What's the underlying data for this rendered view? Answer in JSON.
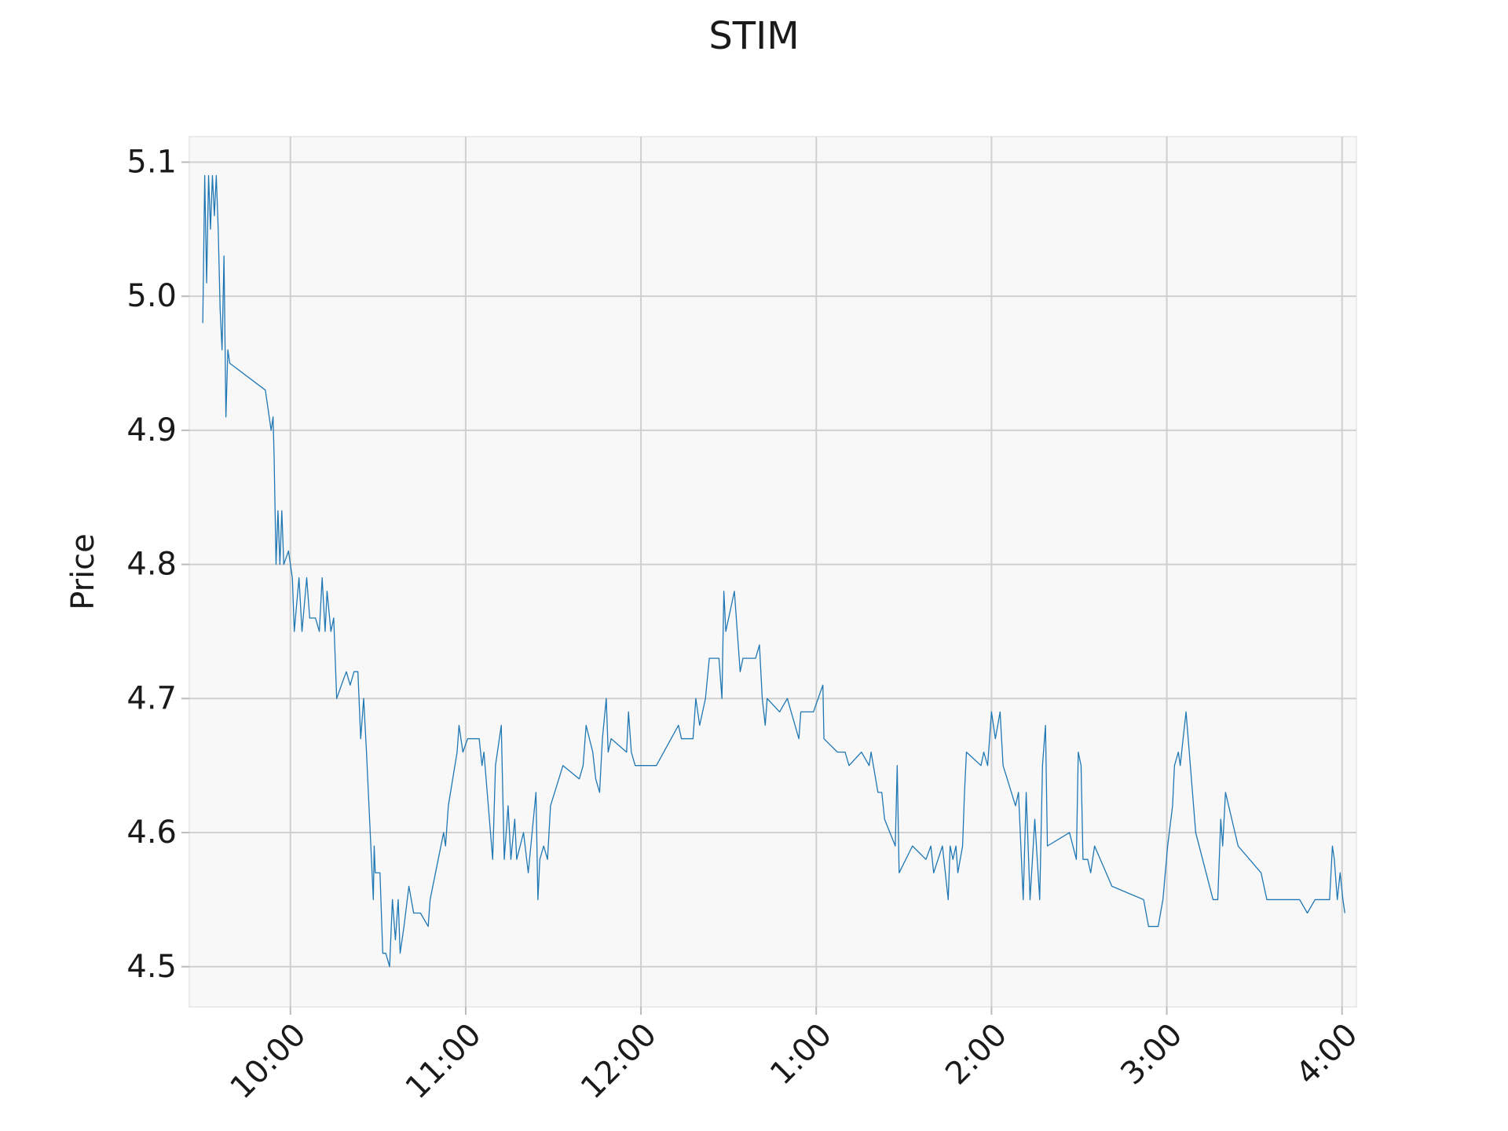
{
  "chart_data": {
    "type": "line",
    "title": "STIM",
    "y_label": "Price",
    "color": "#1f77b4",
    "grid": true,
    "xlim": [
      9.423,
      16.082
    ],
    "ylim": [
      4.47,
      5.119
    ],
    "xticks": [
      {
        "value": 10,
        "label": "10:00"
      },
      {
        "value": 11,
        "label": "11:00"
      },
      {
        "value": 12,
        "label": "12:00"
      },
      {
        "value": 13,
        "label": "1:00"
      },
      {
        "value": 14,
        "label": "2:00"
      },
      {
        "value": 15,
        "label": "3:00"
      },
      {
        "value": 16,
        "label": "4:00"
      }
    ],
    "yticks": [
      4.5,
      4.6,
      4.7,
      4.8,
      4.9,
      {
        "value": 5,
        "label": "5.0"
      },
      5.1
    ],
    "x": [
      9.5,
      9.511,
      9.522,
      9.533,
      9.544,
      9.555,
      9.566,
      9.577,
      9.588,
      9.599,
      9.61,
      9.621,
      9.632,
      9.643,
      9.654,
      9.857,
      9.89,
      9.901,
      9.907,
      9.918,
      9.929,
      9.94,
      9.951,
      9.962,
      9.989,
      10.011,
      10.022,
      10.049,
      10.066,
      10.093,
      10.11,
      10.143,
      10.165,
      10.181,
      10.198,
      10.209,
      10.231,
      10.247,
      10.264,
      10.291,
      10.319,
      10.341,
      10.363,
      10.385,
      10.401,
      10.418,
      10.434,
      10.473,
      10.478,
      10.484,
      10.511,
      10.527,
      10.544,
      10.566,
      10.582,
      10.599,
      10.615,
      10.626,
      10.648,
      10.676,
      10.703,
      10.742,
      10.786,
      10.797,
      10.874,
      10.885,
      10.901,
      10.951,
      10.962,
      10.984,
      11.011,
      11.077,
      11.093,
      11.104,
      11.154,
      11.17,
      11.203,
      11.22,
      11.242,
      11.258,
      11.28,
      11.291,
      11.33,
      11.357,
      11.379,
      11.401,
      11.412,
      11.423,
      11.445,
      11.467,
      11.484,
      11.555,
      11.648,
      11.67,
      11.687,
      11.725,
      11.742,
      11.764,
      11.78,
      11.802,
      11.813,
      11.83,
      11.918,
      11.929,
      11.945,
      11.967,
      12.088,
      12.214,
      12.231,
      12.297,
      12.313,
      12.335,
      12.368,
      12.39,
      12.445,
      12.462,
      12.473,
      12.484,
      12.533,
      12.566,
      12.582,
      12.654,
      12.676,
      12.692,
      12.709,
      12.72,
      12.791,
      12.835,
      12.901,
      12.912,
      12.984,
      13.038,
      13.044,
      13.121,
      13.165,
      13.187,
      13.258,
      13.302,
      13.313,
      13.352,
      13.374,
      13.39,
      13.451,
      13.462,
      13.473,
      13.549,
      13.626,
      13.654,
      13.67,
      13.72,
      13.753,
      13.764,
      13.78,
      13.797,
      13.808,
      13.835,
      13.846,
      13.857,
      13.94,
      13.956,
      13.978,
      14.0,
      14.022,
      14.049,
      14.066,
      14.137,
      14.154,
      14.181,
      14.198,
      14.22,
      14.247,
      14.275,
      14.291,
      14.308,
      14.319,
      14.445,
      14.484,
      14.495,
      14.511,
      14.522,
      14.549,
      14.566,
      14.588,
      14.687,
      14.868,
      14.896,
      14.951,
      14.978,
      15.005,
      15.033,
      15.044,
      15.066,
      15.077,
      15.093,
      15.11,
      15.165,
      15.264,
      15.291,
      15.308,
      15.319,
      15.335,
      15.407,
      15.538,
      15.571,
      15.758,
      15.802,
      15.846,
      15.929,
      15.945,
      15.956,
      15.973,
      15.989,
      16.005,
      16.016
    ],
    "values": [
      4.98,
      5.09,
      5.01,
      5.09,
      5.05,
      5.09,
      5.06,
      5.09,
      5.05,
      4.99,
      4.96,
      5.03,
      4.91,
      4.96,
      4.95,
      4.93,
      4.9,
      4.91,
      4.88,
      4.8,
      4.84,
      4.8,
      4.84,
      4.8,
      4.81,
      4.79,
      4.75,
      4.79,
      4.75,
      4.79,
      4.76,
      4.76,
      4.75,
      4.79,
      4.75,
      4.78,
      4.75,
      4.76,
      4.7,
      4.71,
      4.72,
      4.71,
      4.72,
      4.72,
      4.67,
      4.7,
      4.66,
      4.55,
      4.59,
      4.57,
      4.57,
      4.51,
      4.51,
      4.5,
      4.55,
      4.52,
      4.55,
      4.51,
      4.53,
      4.56,
      4.54,
      4.54,
      4.53,
      4.55,
      4.6,
      4.59,
      4.62,
      4.66,
      4.68,
      4.66,
      4.67,
      4.67,
      4.65,
      4.66,
      4.58,
      4.65,
      4.68,
      4.58,
      4.62,
      4.58,
      4.61,
      4.58,
      4.6,
      4.57,
      4.6,
      4.63,
      4.55,
      4.58,
      4.59,
      4.58,
      4.62,
      4.65,
      4.64,
      4.65,
      4.68,
      4.66,
      4.64,
      4.63,
      4.67,
      4.7,
      4.66,
      4.67,
      4.66,
      4.69,
      4.66,
      4.65,
      4.65,
      4.68,
      4.67,
      4.67,
      4.7,
      4.68,
      4.7,
      4.73,
      4.73,
      4.7,
      4.78,
      4.75,
      4.78,
      4.72,
      4.73,
      4.73,
      4.74,
      4.7,
      4.68,
      4.7,
      4.69,
      4.7,
      4.67,
      4.69,
      4.69,
      4.71,
      4.67,
      4.66,
      4.66,
      4.65,
      4.66,
      4.65,
      4.66,
      4.63,
      4.63,
      4.61,
      4.59,
      4.65,
      4.57,
      4.59,
      4.58,
      4.59,
      4.57,
      4.59,
      4.55,
      4.59,
      4.58,
      4.59,
      4.57,
      4.59,
      4.63,
      4.66,
      4.65,
      4.66,
      4.65,
      4.69,
      4.67,
      4.69,
      4.65,
      4.62,
      4.63,
      4.55,
      4.63,
      4.55,
      4.61,
      4.55,
      4.65,
      4.68,
      4.59,
      4.6,
      4.58,
      4.66,
      4.65,
      4.58,
      4.58,
      4.57,
      4.59,
      4.56,
      4.55,
      4.53,
      4.53,
      4.55,
      4.59,
      4.62,
      4.65,
      4.66,
      4.65,
      4.67,
      4.69,
      4.6,
      4.55,
      4.55,
      4.61,
      4.59,
      4.63,
      4.59,
      4.57,
      4.55,
      4.55,
      4.54,
      4.55,
      4.55,
      4.59,
      4.58,
      4.55,
      4.57,
      4.55,
      4.54
    ]
  }
}
